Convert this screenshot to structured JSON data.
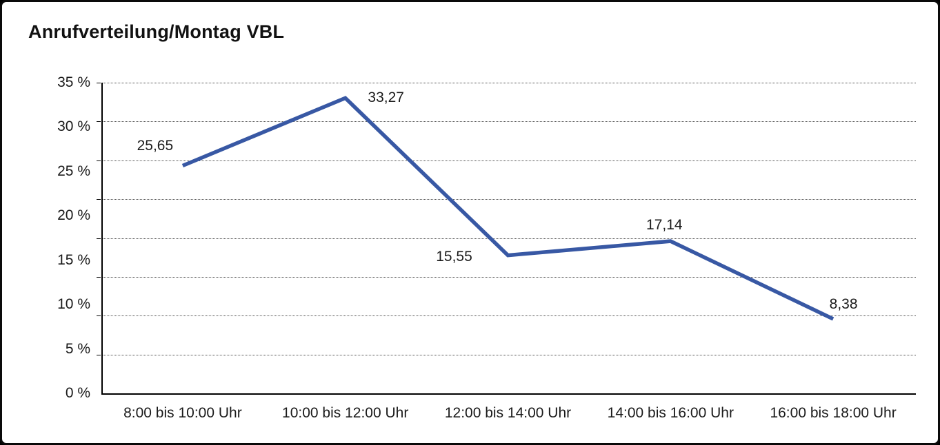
{
  "chart_data": {
    "type": "line",
    "title": "Anrufverteilung/Montag VBL",
    "categories": [
      "8:00 bis 10:00 Uhr",
      "10:00 bis 12:00 Uhr",
      "12:00 bis 14:00 Uhr",
      "14:00 bis 16:00 Uhr",
      "16:00 bis 18:00 Uhr"
    ],
    "values": [
      25.65,
      33.27,
      15.55,
      17.14,
      8.38
    ],
    "value_labels": [
      "25,65",
      "33,27",
      "15,55",
      "17,14",
      "8,38"
    ],
    "series_name": "Anrufverteilung Montag VBL",
    "xlabel": "",
    "ylabel": "",
    "ylim": [
      0,
      35
    ],
    "y_tick_values": [
      35,
      30,
      25,
      20,
      15,
      10,
      5,
      0
    ],
    "y_tick_labels": [
      "35 %",
      "30 %",
      "25 %",
      "20 %",
      "15 %",
      "10 %",
      "5 %",
      "0 %"
    ],
    "grid": {
      "horizontal": true,
      "style": "dotted",
      "divisions": 8,
      "vertical": false
    },
    "legend": "none",
    "colors": {
      "line": "#3858a4",
      "text": "#1a1a1a",
      "grid": "#4d4d4d",
      "axis": "#000000",
      "background": "#ffffff",
      "frame": "#0a0a0a"
    }
  }
}
